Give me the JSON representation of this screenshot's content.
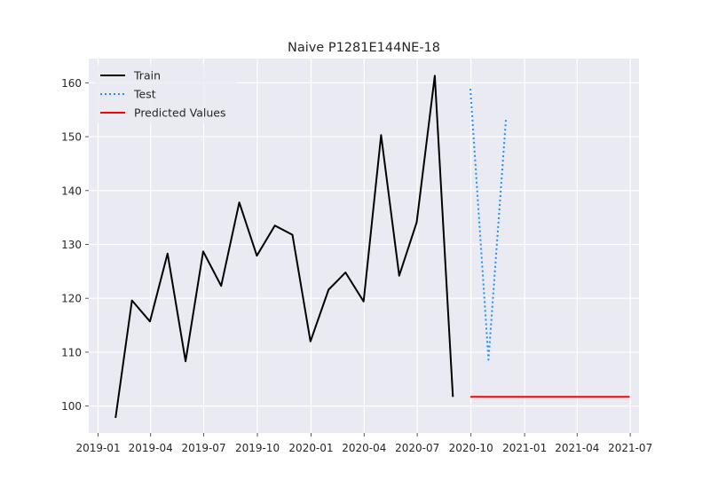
{
  "chart_data": {
    "type": "line",
    "title": "Naive P1281E144NE-18",
    "xlabel": "",
    "ylabel": "",
    "x_type": "date",
    "xlim": [
      "2018-12-16",
      "2021-07-16"
    ],
    "ylim": [
      95,
      164.5
    ],
    "x_ticks": [
      "2019-01",
      "2019-04",
      "2019-07",
      "2019-10",
      "2020-01",
      "2020-04",
      "2020-07",
      "2020-10",
      "2021-01",
      "2021-04",
      "2021-07"
    ],
    "x_tick_dates": [
      "2019-01-01",
      "2019-04-01",
      "2019-07-01",
      "2019-10-01",
      "2020-01-01",
      "2020-04-01",
      "2020-07-01",
      "2020-10-01",
      "2021-01-01",
      "2021-04-01",
      "2021-07-01"
    ],
    "y_ticks": [
      100,
      110,
      120,
      130,
      140,
      150,
      160
    ],
    "grid": true,
    "legend_position": "top-left",
    "background": "#eaeaf2",
    "series": [
      {
        "name": "Train",
        "color": "#000000",
        "style": "solid",
        "x": [
          "2019-01-31",
          "2019-02-28",
          "2019-03-31",
          "2019-04-30",
          "2019-05-31",
          "2019-06-30",
          "2019-07-31",
          "2019-08-31",
          "2019-09-30",
          "2019-10-31",
          "2019-11-30",
          "2019-12-31",
          "2020-01-31",
          "2020-02-29",
          "2020-03-31",
          "2020-04-30",
          "2020-05-31",
          "2020-06-30",
          "2020-07-31",
          "2020-08-31"
        ],
        "values": [
          97.8,
          119.6,
          115.7,
          128.3,
          108.3,
          128.7,
          122.3,
          137.8,
          127.9,
          133.5,
          131.8,
          112.0,
          121.6,
          124.8,
          119.4,
          150.3,
          124.2,
          134.1,
          161.3,
          101.7
        ]
      },
      {
        "name": "Test",
        "color": "#1e90ff",
        "style": "dotted",
        "x": [
          "2020-09-30",
          "2020-10-31",
          "2020-11-30"
        ],
        "values": [
          158.9,
          108.6,
          153.3
        ]
      },
      {
        "name": "Predicted Values",
        "color": "#ff0000",
        "style": "solid",
        "x": [
          "2020-09-30",
          "2021-06-30"
        ],
        "values": [
          101.7,
          101.7
        ]
      }
    ]
  }
}
